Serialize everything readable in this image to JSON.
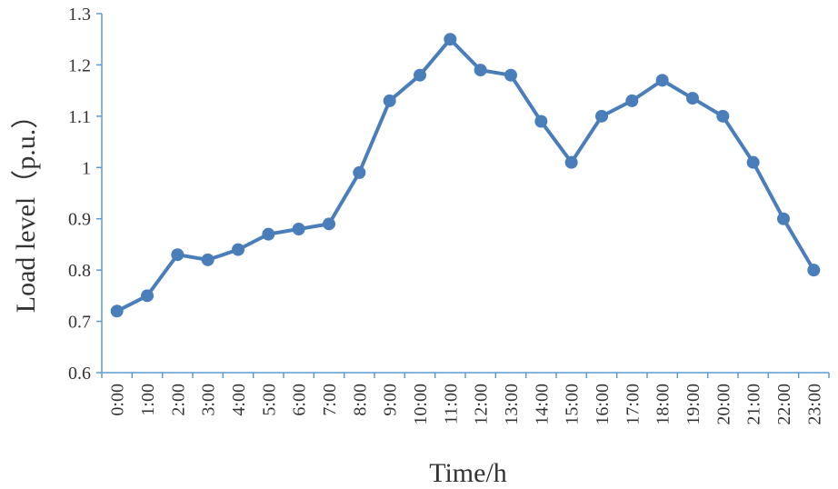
{
  "chart_data": {
    "type": "line",
    "title": "",
    "xlabel": "Time/h",
    "ylabel": "Load level（p.u.）",
    "categories": [
      "0:00",
      "1:00",
      "2:00",
      "3:00",
      "4:00",
      "5:00",
      "6:00",
      "7:00",
      "8:00",
      "9:00",
      "10:00",
      "11:00",
      "12:00",
      "13:00",
      "14:00",
      "15:00",
      "16:00",
      "17:00",
      "18:00",
      "19:00",
      "20:00",
      "21:00",
      "22:00",
      "23:00"
    ],
    "series": [
      {
        "values": [
          0.72,
          0.75,
          0.83,
          0.82,
          0.84,
          0.87,
          0.88,
          0.89,
          0.99,
          1.13,
          1.18,
          1.25,
          1.19,
          1.18,
          1.09,
          1.01,
          1.1,
          1.13,
          1.17,
          1.135,
          1.1,
          1.01,
          0.9,
          0.8
        ]
      }
    ],
    "yticks": [
      "0.6",
      "0.7",
      "0.8",
      "0.9",
      "1",
      "1.1",
      "1.2",
      "1.3"
    ],
    "ylim": [
      0.6,
      1.3
    ],
    "grid": false,
    "legend": "none",
    "line_color": "#4a7ebb"
  }
}
